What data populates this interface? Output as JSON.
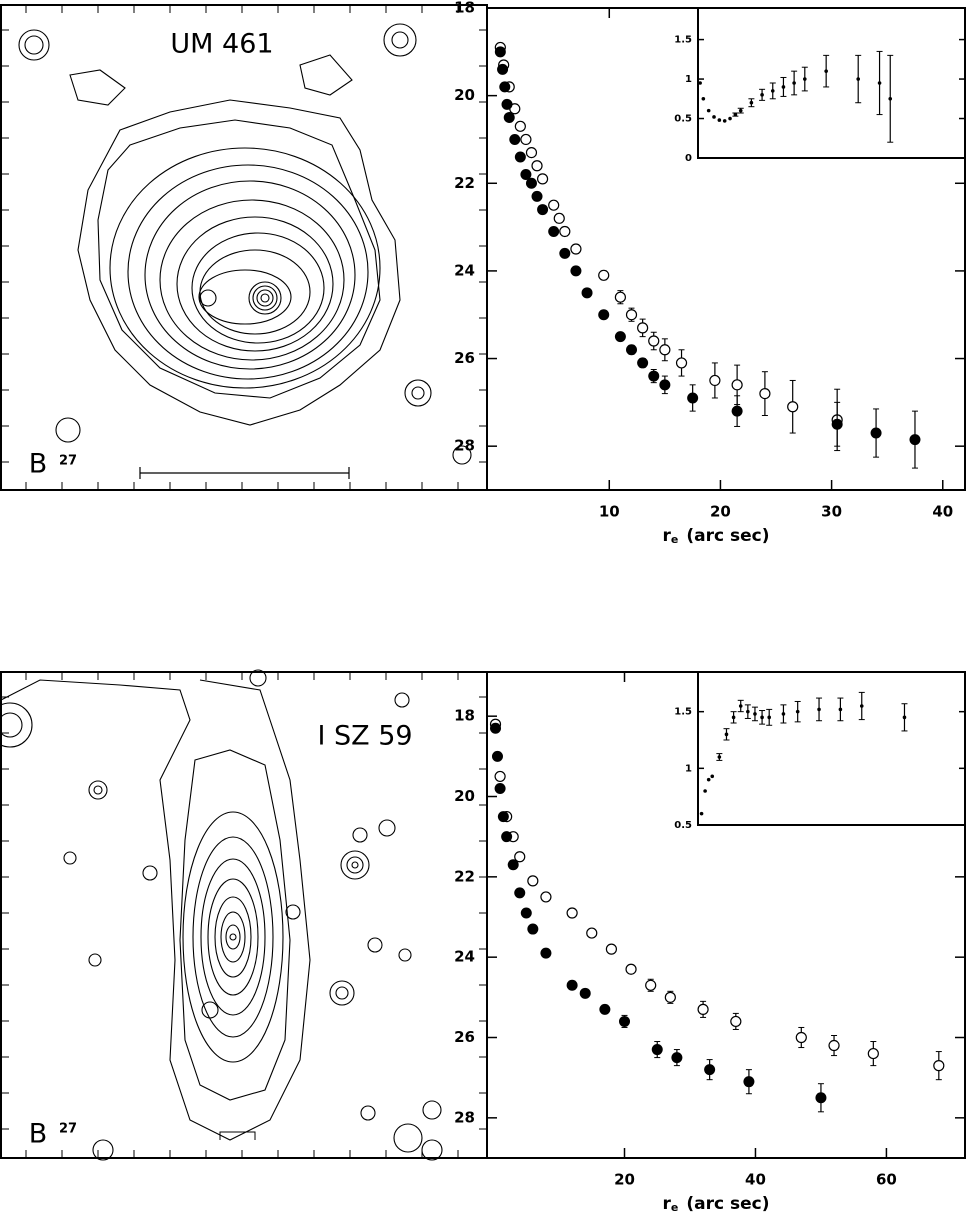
{
  "images": [
    {
      "name": "UM 461",
      "band": "B",
      "level": 27
    },
    {
      "name": "I SZ 59",
      "band": "B",
      "level": 27
    }
  ],
  "chart_data": [
    {
      "type": "scatter",
      "xlabel": "r",
      "xlabel_sub": "e",
      "xlabel_unit": "(arc sec)",
      "xlim": [
        -1,
        42
      ],
      "xticks": [
        10,
        20,
        30,
        40
      ],
      "ylim": [
        29,
        18
      ],
      "yticks": [
        18,
        20,
        22,
        24,
        26,
        28
      ],
      "series": [
        {
          "marker": "open",
          "color": "#000000",
          "x": [
            0.2,
            0.5,
            1,
            1.5,
            2,
            2.5,
            3,
            3.5,
            4,
            5,
            5.5,
            6,
            7,
            9.5,
            11,
            12,
            13,
            14,
            15,
            16.5,
            19.5,
            21.5,
            24,
            26.5,
            30.5
          ],
          "values": [
            18.9,
            19.3,
            19.8,
            20.3,
            20.7,
            21.0,
            21.3,
            21.6,
            21.9,
            22.5,
            22.8,
            23.1,
            23.5,
            24.1,
            24.6,
            25.0,
            25.3,
            25.6,
            25.8,
            26.1,
            26.5,
            26.6,
            26.8,
            27.1,
            27.4
          ],
          "errors": [
            0,
            0,
            0,
            0,
            0,
            0,
            0,
            0.05,
            0.05,
            0.05,
            0.1,
            0.1,
            0.1,
            0.1,
            0.15,
            0.15,
            0.2,
            0.2,
            0.25,
            0.3,
            0.4,
            0.45,
            0.5,
            0.6,
            0.7
          ]
        },
        {
          "marker": "filled",
          "color": "#000000",
          "x": [
            0.2,
            0.4,
            0.6,
            0.8,
            1,
            1.5,
            2,
            2.5,
            3,
            3.5,
            4,
            5,
            6,
            7,
            8,
            9.5,
            11,
            12,
            13,
            14,
            15,
            17.5,
            21.5,
            30.5,
            34,
            37.5
          ],
          "values": [
            19.0,
            19.4,
            19.8,
            20.2,
            20.5,
            21.0,
            21.4,
            21.8,
            22.0,
            22.3,
            22.6,
            23.1,
            23.6,
            24.0,
            24.5,
            25.0,
            25.5,
            25.8,
            26.1,
            26.4,
            26.6,
            26.9,
            27.2,
            27.5,
            27.7,
            27.85
          ],
          "errors": [
            0,
            0,
            0,
            0,
            0,
            0,
            0,
            0,
            0,
            0,
            0,
            0,
            0,
            0,
            0,
            0,
            0.05,
            0.1,
            0.1,
            0.15,
            0.2,
            0.3,
            0.35,
            0.5,
            0.55,
            0.65
          ]
        }
      ]
    },
    {
      "type": "scatter",
      "xlim": [
        0,
        25
      ],
      "ylim": [
        0,
        1.9
      ],
      "yticks": [
        0,
        0.5,
        1,
        1.5
      ],
      "series": [
        {
          "marker": "dot",
          "color": "#000000",
          "x": [
            0.2,
            0.5,
            1,
            1.5,
            2,
            2.5,
            3,
            3.5,
            4,
            5,
            6,
            7,
            8,
            9,
            10,
            12,
            15,
            17,
            18
          ],
          "values": [
            0.95,
            0.75,
            0.6,
            0.52,
            0.48,
            0.47,
            0.5,
            0.55,
            0.6,
            0.7,
            0.8,
            0.85,
            0.9,
            0.95,
            1.0,
            1.1,
            1.0,
            0.95,
            0.75
          ],
          "errors": [
            0,
            0,
            0,
            0,
            0,
            0,
            0,
            0.02,
            0.03,
            0.05,
            0.07,
            0.1,
            0.12,
            0.15,
            0.15,
            0.2,
            0.3,
            0.4,
            0.55
          ]
        }
      ]
    },
    {
      "type": "scatter",
      "xlabel": "r",
      "xlabel_sub": "e",
      "xlabel_unit": "(arc sec)",
      "xlim": [
        -1,
        72
      ],
      "xticks": [
        20,
        40,
        60
      ],
      "ylim": [
        29,
        16.9
      ],
      "yticks": [
        18,
        20,
        22,
        24,
        26,
        28
      ],
      "series": [
        {
          "marker": "open",
          "color": "#000000",
          "x": [
            0.3,
            1,
            2,
            3,
            4,
            6,
            8,
            12,
            15,
            18,
            21,
            24,
            27,
            32,
            37,
            47,
            52,
            58,
            68
          ],
          "values": [
            18.2,
            19.5,
            20.5,
            21.0,
            21.5,
            22.1,
            22.5,
            22.9,
            23.4,
            23.8,
            24.3,
            24.7,
            25.0,
            25.3,
            25.6,
            26.0,
            26.2,
            26.4,
            26.7
          ],
          "errors": [
            0,
            0,
            0,
            0,
            0,
            0,
            0.05,
            0.05,
            0.1,
            0.1,
            0.1,
            0.15,
            0.15,
            0.2,
            0.2,
            0.25,
            0.25,
            0.3,
            0.35
          ]
        },
        {
          "marker": "filled",
          "color": "#000000",
          "x": [
            0.3,
            0.6,
            1,
            1.5,
            2,
            3,
            4,
            5,
            6,
            8,
            12,
            14,
            17,
            20,
            25,
            28,
            33,
            39,
            50
          ],
          "values": [
            18.3,
            19.0,
            19.8,
            20.5,
            21.0,
            21.7,
            22.4,
            22.9,
            23.3,
            23.9,
            24.7,
            24.9,
            25.3,
            25.6,
            26.3,
            26.5,
            26.8,
            27.1,
            27.5
          ],
          "errors": [
            0,
            0,
            0,
            0,
            0,
            0,
            0,
            0,
            0,
            0,
            0.1,
            0.1,
            0.1,
            0.15,
            0.2,
            0.2,
            0.25,
            0.3,
            0.35
          ]
        }
      ]
    },
    {
      "type": "scatter",
      "xlim": [
        0,
        75
      ],
      "ylim": [
        0.5,
        1.85
      ],
      "yticks": [
        0.5,
        1,
        1.5
      ],
      "series": [
        {
          "marker": "dot",
          "color": "#000000",
          "x": [
            1,
            2,
            3,
            4,
            6,
            8,
            10,
            12,
            14,
            16,
            18,
            20,
            24,
            28,
            34,
            40,
            46,
            58
          ],
          "values": [
            0.6,
            0.8,
            0.9,
            0.93,
            1.1,
            1.3,
            1.45,
            1.55,
            1.5,
            1.48,
            1.45,
            1.45,
            1.48,
            1.5,
            1.52,
            1.52,
            1.55,
            1.45
          ],
          "errors": [
            0,
            0,
            0,
            0,
            0.03,
            0.05,
            0.05,
            0.05,
            0.06,
            0.06,
            0.06,
            0.07,
            0.08,
            0.09,
            0.1,
            0.1,
            0.12,
            0.12
          ]
        }
      ]
    }
  ]
}
